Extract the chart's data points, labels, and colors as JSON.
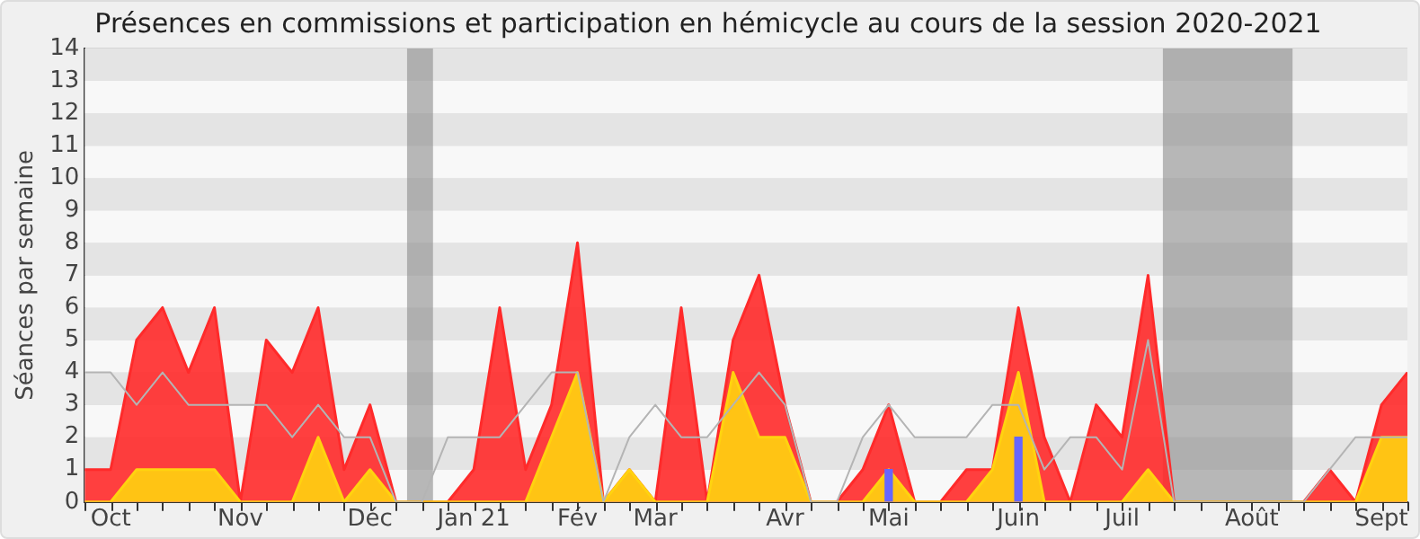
{
  "chart_data": {
    "type": "area",
    "title": "Présences en commissions et participation en hémicycle au cours de la session 2020-2021",
    "ylabel": "Séances par semaine",
    "x": [
      "2020-09-28",
      "2020-10-05",
      "2020-10-12",
      "2020-10-19",
      "2020-10-26",
      "2020-11-02",
      "2020-11-09",
      "2020-11-16",
      "2020-11-23",
      "2020-11-30",
      "2020-12-07",
      "2020-12-14",
      "2020-12-21",
      "2020-12-28",
      "2021-01-04",
      "2021-01-11",
      "2021-01-18",
      "2021-01-25",
      "2021-02-01",
      "2021-02-08",
      "2021-02-15",
      "2021-02-22",
      "2021-03-01",
      "2021-03-08",
      "2021-03-15",
      "2021-03-22",
      "2021-03-29",
      "2021-04-05",
      "2021-04-12",
      "2021-04-19",
      "2021-04-26",
      "2021-05-03",
      "2021-05-10",
      "2021-05-17",
      "2021-05-24",
      "2021-05-31",
      "2021-06-07",
      "2021-06-14",
      "2021-06-21",
      "2021-06-28",
      "2021-07-05",
      "2021-07-12",
      "2021-07-19",
      "2021-07-26",
      "2021-08-02",
      "2021-08-09",
      "2021-08-16",
      "2021-08-23",
      "2021-08-30",
      "2021-09-06",
      "2021-09-13",
      "2021-09-20"
    ],
    "series": [
      {
        "type": "line",
        "color": "#b4b4b4",
        "values": [
          4,
          4,
          3,
          4,
          3,
          3,
          3,
          3,
          2,
          3,
          2,
          2,
          0,
          0,
          2,
          2,
          2,
          3,
          4,
          4,
          0,
          2,
          3,
          2,
          2,
          3,
          4,
          3,
          0,
          0,
          2,
          3,
          2,
          2,
          2,
          3,
          3,
          1,
          2,
          2,
          1,
          5,
          0,
          0,
          0,
          0,
          0,
          0,
          1,
          2,
          2,
          2
        ]
      },
      {
        "color": "#ff2a2a",
        "values": [
          1,
          1,
          5,
          6,
          4,
          6,
          0,
          5,
          4,
          6,
          1,
          3,
          0,
          0,
          0,
          1,
          6,
          1,
          3,
          8,
          0,
          1,
          0,
          6,
          0,
          5,
          7,
          3,
          0,
          0,
          1,
          3,
          0,
          0,
          1,
          1,
          6,
          2,
          0,
          3,
          2,
          7,
          0,
          0,
          0,
          0,
          0,
          0,
          1,
          0,
          3,
          4
        ]
      },
      {
        "color": "#ffd30f",
        "values": [
          0,
          0,
          1,
          1,
          1,
          1,
          0,
          0,
          0,
          2,
          0,
          1,
          0,
          0,
          0,
          0,
          0,
          0,
          2,
          4,
          0,
          1,
          0,
          0,
          0,
          4,
          2,
          2,
          0,
          0,
          0,
          1,
          0,
          0,
          0,
          1,
          4,
          0,
          0,
          0,
          0,
          1,
          0,
          0,
          0,
          0,
          0,
          0,
          0,
          0,
          2,
          2
        ]
      },
      {
        "type": "bar",
        "color": "#6666ff",
        "values": [
          null,
          null,
          null,
          null,
          null,
          null,
          null,
          null,
          null,
          null,
          null,
          null,
          null,
          null,
          null,
          null,
          null,
          null,
          null,
          null,
          null,
          null,
          null,
          null,
          null,
          null,
          null,
          null,
          null,
          null,
          null,
          1,
          null,
          null,
          null,
          null,
          2,
          null,
          null,
          null,
          null,
          null,
          null,
          null,
          null,
          null,
          null,
          null,
          null,
          null,
          null,
          null
        ]
      }
    ],
    "xlim": [
      "2020-09-28",
      "2021-09-20"
    ],
    "xticks": [
      {
        "value": "2020-10-05",
        "label": "Oct"
      },
      {
        "value": "2020-11-09",
        "label": "Nov"
      },
      {
        "value": "2020-12-14",
        "label": "Déc"
      },
      {
        "value": "2021-01-11",
        "label": "Jan 21"
      },
      {
        "value": "2021-02-08",
        "label": "Fév"
      },
      {
        "value": "2021-03-01",
        "label": "Mar"
      },
      {
        "value": "2021-04-05",
        "label": "Avr"
      },
      {
        "value": "2021-05-03",
        "label": "Mai"
      },
      {
        "value": "2021-06-07",
        "label": "Juin"
      },
      {
        "value": "2021-07-05",
        "label": "Juil"
      },
      {
        "value": "2021-08-09",
        "label": "Août"
      },
      {
        "value": "2021-09-13",
        "label": "Sept"
      }
    ],
    "ylim": [
      0,
      14
    ],
    "yticks": [
      0,
      1,
      2,
      3,
      4,
      5,
      6,
      7,
      8,
      9,
      10,
      11,
      12,
      13,
      14
    ],
    "bands": [
      {
        "axis": "x",
        "from": "2020-12-24",
        "to": "2020-12-31",
        "color": "#8c8c8c"
      },
      {
        "axis": "x",
        "from": "2021-07-16",
        "to": "2021-08-20",
        "color": "#8c8c8c"
      }
    ],
    "grid": "y",
    "legend": false
  }
}
